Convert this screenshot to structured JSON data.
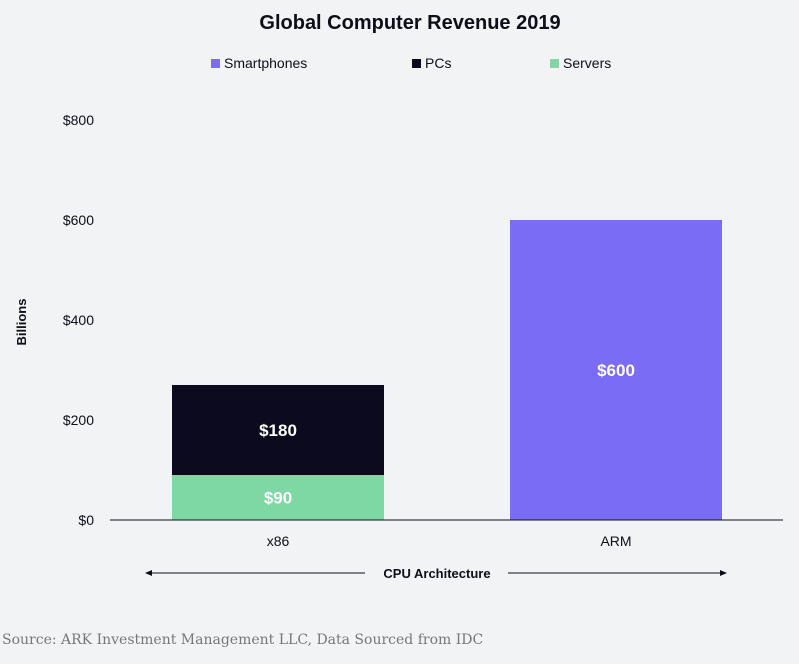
{
  "chart_data": {
    "type": "bar",
    "stacked": true,
    "title": "Global Computer Revenue 2019",
    "ylabel": "Billions",
    "xlabel": "CPU Architecture",
    "categories": [
      "x86",
      "ARM"
    ],
    "ylim": [
      0,
      800
    ],
    "yticks": [
      0,
      200,
      400,
      600,
      800
    ],
    "ytick_labels": [
      "$0",
      "$200",
      "$400",
      "$600",
      "$800"
    ],
    "legend_position": "top",
    "series": [
      {
        "name": "Servers",
        "values": [
          90,
          0
        ],
        "color": "#7dd8a3",
        "labels": [
          "$90",
          ""
        ]
      },
      {
        "name": "PCs",
        "values": [
          180,
          0
        ],
        "color": "#0b0a1f",
        "labels": [
          "$180",
          ""
        ]
      },
      {
        "name": "Smartphones",
        "values": [
          0,
          600
        ],
        "color": "#7b6cf6",
        "labels": [
          "",
          "$600"
        ]
      }
    ],
    "legend_order": [
      "Smartphones",
      "PCs",
      "Servers"
    ],
    "grid": false
  },
  "source": "Source: ARK Investment Management LLC, Data Sourced from IDC"
}
